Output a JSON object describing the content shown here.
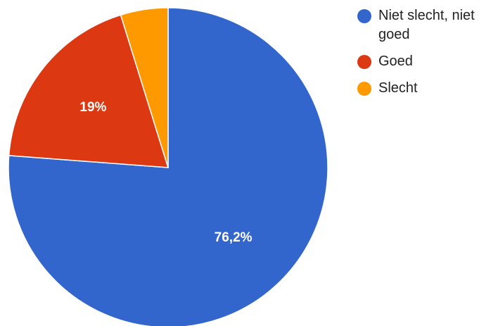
{
  "chart_data": {
    "type": "pie",
    "slices": [
      {
        "name": "Niet slecht, niet goed",
        "value": 76.2,
        "label": "76,2%",
        "color": "#3366cc"
      },
      {
        "name": "Goed",
        "value": 19.0,
        "label": "19%",
        "color": "#dc3912"
      },
      {
        "name": "Slecht",
        "value": 4.8,
        "label": "",
        "color": "#ff9900"
      }
    ],
    "start": "top",
    "direction": "clockwise",
    "legend_position": "right"
  }
}
